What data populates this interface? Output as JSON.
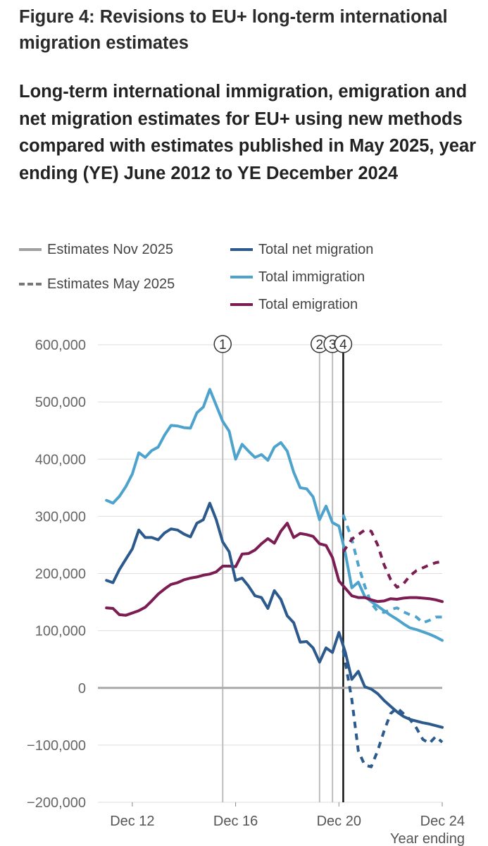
{
  "figure": {
    "title": "Figure 4: Revisions to EU+ long-term international migration estimates",
    "subtitle": "Long-term international immigration, emigration and net migration estimates for EU+ using new methods compared with estimates published in May 2025, year ending (YE) June 2012 to YE December 2024"
  },
  "legend": {
    "styles": [
      {
        "label": "Estimates Nov 2025",
        "style": "solid"
      },
      {
        "label": "Estimates May 2025",
        "style": "dashed"
      }
    ],
    "series": [
      {
        "label": "Total net migration",
        "color": "#2c5a8c"
      },
      {
        "label": "Total immigration",
        "color": "#4ea3cc"
      },
      {
        "label": "Total emigration",
        "color": "#7b1c52"
      }
    ]
  },
  "chart_data": {
    "type": "line",
    "xlabel": "Year ending",
    "ylim": [
      -200000,
      600000
    ],
    "xlim": [
      2011.667,
      2025.0
    ],
    "x_ticks": [
      {
        "x": 2013.0,
        "label": "Dec 12"
      },
      {
        "x": 2017.0,
        "label": "Dec 16"
      },
      {
        "x": 2021.0,
        "label": "Dec 20"
      },
      {
        "x": 2025.0,
        "label": "Dec 24"
      }
    ],
    "y_ticks": [
      {
        "y": 600000,
        "label": "600,000"
      },
      {
        "y": 500000,
        "label": "500,000"
      },
      {
        "y": 400000,
        "label": "400,000"
      },
      {
        "y": 300000,
        "label": "300,000"
      },
      {
        "y": 200000,
        "label": "200,000"
      },
      {
        "y": 100000,
        "label": "100,000"
      },
      {
        "y": 0,
        "label": "0"
      },
      {
        "y": -100000,
        "label": "−100,000"
      },
      {
        "y": -200000,
        "label": "−200,000"
      }
    ],
    "grid": true,
    "annotations": [
      {
        "label": "1",
        "x": 2016.5
      },
      {
        "label": "2",
        "x": 2020.25
      },
      {
        "label": "3",
        "x": 2020.75
      },
      {
        "label": "4",
        "x": 2021.167
      }
    ],
    "series": [
      {
        "name": "Total immigration",
        "vintage": "Estimates Nov 2025",
        "color": "#4ea3cc",
        "style": "solid",
        "x": [
          2012.0,
          2012.25,
          2012.5,
          2012.75,
          2013.0,
          2013.25,
          2013.5,
          2013.75,
          2014.0,
          2014.25,
          2014.5,
          2014.75,
          2015.0,
          2015.25,
          2015.5,
          2015.75,
          2016.0,
          2016.25,
          2016.5,
          2016.75,
          2017.0,
          2017.25,
          2017.5,
          2017.75,
          2018.0,
          2018.25,
          2018.5,
          2018.75,
          2019.0,
          2019.25,
          2019.5,
          2019.75,
          2020.0,
          2020.25,
          2020.5,
          2020.75,
          2021.0,
          2021.25,
          2021.5,
          2021.75,
          2022.0,
          2022.25,
          2022.5,
          2022.75,
          2023.0,
          2023.25,
          2023.5,
          2023.75,
          2024.0,
          2024.25,
          2024.5,
          2024.75,
          2025.0
        ],
        "y": [
          328000,
          323000,
          335000,
          352000,
          374000,
          411000,
          403000,
          415000,
          421000,
          442000,
          459000,
          458000,
          455000,
          454000,
          481000,
          491000,
          522000,
          494000,
          466000,
          449000,
          400000,
          426000,
          414000,
          403000,
          408000,
          398000,
          421000,
          429000,
          414000,
          377000,
          350000,
          348000,
          334000,
          294000,
          318000,
          289000,
          283000,
          235000,
          175000,
          185000,
          160000,
          151000,
          143000,
          135000,
          127000,
          120000,
          112000,
          105000,
          102000,
          98000,
          94000,
          89000,
          83000
        ]
      },
      {
        "name": "Total immigration",
        "vintage": "Estimates May 2025",
        "color": "#4ea3cc",
        "style": "dashed",
        "x": [
          2021.167,
          2021.5,
          2021.75,
          2022.0,
          2022.25,
          2022.5,
          2022.75,
          2023.0,
          2023.25,
          2023.5,
          2023.75,
          2024.0,
          2024.25,
          2024.5,
          2024.75,
          2025.0
        ],
        "y": [
          303000,
          260000,
          215000,
          178000,
          148000,
          134000,
          132000,
          137000,
          140000,
          133000,
          128000,
          124000,
          114000,
          118000,
          124000,
          124000
        ]
      },
      {
        "name": "Total emigration",
        "vintage": "Estimates Nov 2025",
        "color": "#7b1c52",
        "style": "solid",
        "x": [
          2012.0,
          2012.25,
          2012.5,
          2012.75,
          2013.0,
          2013.25,
          2013.5,
          2013.75,
          2014.0,
          2014.25,
          2014.5,
          2014.75,
          2015.0,
          2015.25,
          2015.5,
          2015.75,
          2016.0,
          2016.25,
          2016.5,
          2016.75,
          2017.0,
          2017.25,
          2017.5,
          2017.75,
          2018.0,
          2018.25,
          2018.5,
          2018.75,
          2019.0,
          2019.25,
          2019.5,
          2019.75,
          2020.0,
          2020.25,
          2020.5,
          2020.75,
          2021.0,
          2021.25,
          2021.5,
          2021.75,
          2022.0,
          2022.25,
          2022.5,
          2022.75,
          2023.0,
          2023.25,
          2023.5,
          2023.75,
          2024.0,
          2024.25,
          2024.5,
          2024.75,
          2025.0
        ],
        "y": [
          140000,
          139000,
          128000,
          127000,
          131000,
          135000,
          141000,
          152000,
          164000,
          173000,
          181000,
          184000,
          189000,
          192000,
          194000,
          197000,
          199000,
          203000,
          213000,
          213000,
          212000,
          234000,
          235000,
          241000,
          252000,
          261000,
          253000,
          274000,
          288000,
          263000,
          270000,
          268000,
          265000,
          252000,
          249000,
          228000,
          187000,
          174000,
          161000,
          158000,
          158000,
          154000,
          151000,
          152000,
          156000,
          155000,
          157000,
          158000,
          158000,
          157000,
          156000,
          154000,
          151000
        ]
      },
      {
        "name": "Total emigration",
        "vintage": "Estimates May 2025",
        "color": "#7b1c52",
        "style": "dashed",
        "x": [
          2021.167,
          2021.5,
          2021.75,
          2022.0,
          2022.25,
          2022.5,
          2022.75,
          2023.0,
          2023.25,
          2023.5,
          2023.75,
          2024.0,
          2024.25,
          2024.5,
          2024.75,
          2025.0
        ],
        "y": [
          238000,
          260000,
          268000,
          276000,
          274000,
          250000,
          215000,
          190000,
          176000,
          182000,
          196000,
          205000,
          210000,
          215000,
          219000,
          221000
        ]
      },
      {
        "name": "Total net migration",
        "vintage": "Estimates Nov 2025",
        "color": "#2c5a8c",
        "style": "solid",
        "x": [
          2012.0,
          2012.25,
          2012.5,
          2012.75,
          2013.0,
          2013.25,
          2013.5,
          2013.75,
          2014.0,
          2014.25,
          2014.5,
          2014.75,
          2015.0,
          2015.25,
          2015.5,
          2015.75,
          2016.0,
          2016.25,
          2016.5,
          2016.75,
          2017.0,
          2017.25,
          2017.5,
          2017.75,
          2018.0,
          2018.25,
          2018.5,
          2018.75,
          2019.0,
          2019.25,
          2019.5,
          2019.75,
          2020.0,
          2020.25,
          2020.5,
          2020.75,
          2021.0,
          2021.25,
          2021.5,
          2021.75,
          2022.0,
          2022.25,
          2022.5,
          2022.75,
          2023.0,
          2023.25,
          2023.5,
          2023.75,
          2024.0,
          2024.25,
          2024.5,
          2024.75,
          2025.0
        ],
        "y": [
          188000,
          184000,
          207000,
          225000,
          243000,
          276000,
          263000,
          263000,
          259000,
          271000,
          278000,
          276000,
          269000,
          264000,
          288000,
          294000,
          323000,
          294000,
          255000,
          238000,
          188000,
          192000,
          178000,
          161000,
          158000,
          139000,
          170000,
          155000,
          126000,
          114000,
          80000,
          81000,
          70000,
          45000,
          70000,
          62000,
          97000,
          62000,
          15000,
          29000,
          2000,
          -2000,
          -10000,
          -22000,
          -32000,
          -42000,
          -50000,
          -55000,
          -58000,
          -61000,
          -63000,
          -66000,
          -69000
        ]
      },
      {
        "name": "Total net migration",
        "vintage": "Estimates May 2025",
        "color": "#2c5a8c",
        "style": "dashed",
        "x": [
          2021.167,
          2021.5,
          2021.75,
          2022.0,
          2022.25,
          2022.5,
          2022.75,
          2023.0,
          2023.25,
          2023.5,
          2023.75,
          2024.0,
          2024.25,
          2024.5,
          2024.75,
          2025.0
        ],
        "y": [
          65000,
          -20000,
          -110000,
          -135000,
          -138000,
          -110000,
          -75000,
          -45000,
          -35000,
          -45000,
          -55000,
          -70000,
          -90000,
          -97000,
          -85000,
          -95000
        ]
      }
    ]
  }
}
